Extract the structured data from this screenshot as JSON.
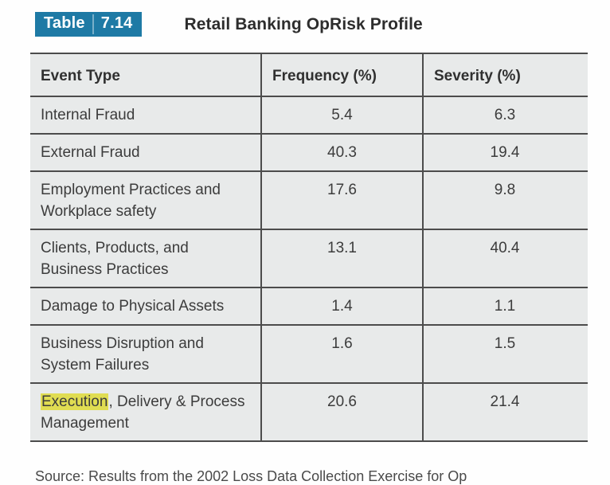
{
  "colors": {
    "label_bg": "#1e7aa5",
    "label_text": "#ffffff",
    "title_text": "#2d2d2d",
    "header_text": "#303030",
    "body_text": "#3c3c3c",
    "row_bg": "#e8eaea",
    "border_color": "#4c4c4c",
    "highlight_color": "#e0dd52"
  },
  "caption": {
    "label_word": "Table",
    "label_number": "7.14",
    "title": "Retail Banking OpRisk Profile"
  },
  "table": {
    "columns": [
      "Event Type",
      "Frequency (%)",
      "Severity (%)"
    ],
    "rows": [
      {
        "event_highlight": "",
        "event_text": "Internal Fraud",
        "frequency": "5.4",
        "severity": "6.3"
      },
      {
        "event_highlight": "",
        "event_text": "External Fraud",
        "frequency": "40.3",
        "severity": "19.4"
      },
      {
        "event_highlight": "",
        "event_text": "Employment Practices and Workplace safety",
        "frequency": "17.6",
        "severity": "9.8"
      },
      {
        "event_highlight": "",
        "event_text": "Clients, Products, and Business Practices",
        "frequency": "13.1",
        "severity": "40.4"
      },
      {
        "event_highlight": "",
        "event_text": "Damage to Physical Assets",
        "frequency": "1.4",
        "severity": "1.1"
      },
      {
        "event_highlight": "",
        "event_text": "Business Disruption and System Failures",
        "frequency": "1.6",
        "severity": "1.5"
      },
      {
        "event_highlight": "Execution",
        "event_text": ", Delivery & Process Management",
        "frequency": "20.6",
        "severity": "21.4"
      }
    ]
  },
  "source_caption": "Source: Results from the 2002 Loss Data Collection Exercise for Op"
}
